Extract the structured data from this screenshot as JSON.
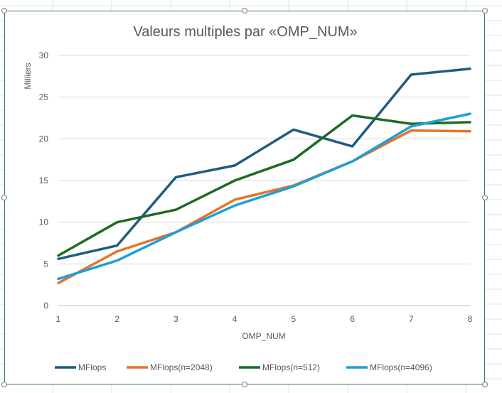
{
  "chart_data": {
    "type": "line",
    "title": "Valeurs multiples par «OMP_NUM»",
    "xlabel": "OMP_NUM",
    "ylabel": "Milliers",
    "categories": [
      "1",
      "2",
      "3",
      "4",
      "5",
      "6",
      "7",
      "8"
    ],
    "ylim": [
      0,
      30
    ],
    "yticks": [
      "0",
      "5",
      "10",
      "15",
      "20",
      "25",
      "30"
    ],
    "grid": true,
    "legend_position": "bottom",
    "series": [
      {
        "name": "MFlops",
        "color": "#1f5c80",
        "values": [
          5.6,
          7.2,
          15.4,
          16.8,
          21.1,
          19.1,
          27.7,
          28.4
        ]
      },
      {
        "name": "MFlops(n=2048)",
        "color": "#e5732c",
        "values": [
          2.7,
          6.5,
          8.8,
          12.7,
          14.4,
          17.3,
          21.0,
          20.9
        ]
      },
      {
        "name": "MFlops(n=512)",
        "color": "#1e6b24",
        "values": [
          6.0,
          10.0,
          11.5,
          15.0,
          17.5,
          22.8,
          21.8,
          22.0
        ]
      },
      {
        "name": "MFlops(n=4096)",
        "color": "#1f9fd6",
        "values": [
          3.2,
          5.4,
          8.8,
          12.0,
          14.3,
          17.3,
          21.5,
          23.0
        ]
      }
    ]
  }
}
